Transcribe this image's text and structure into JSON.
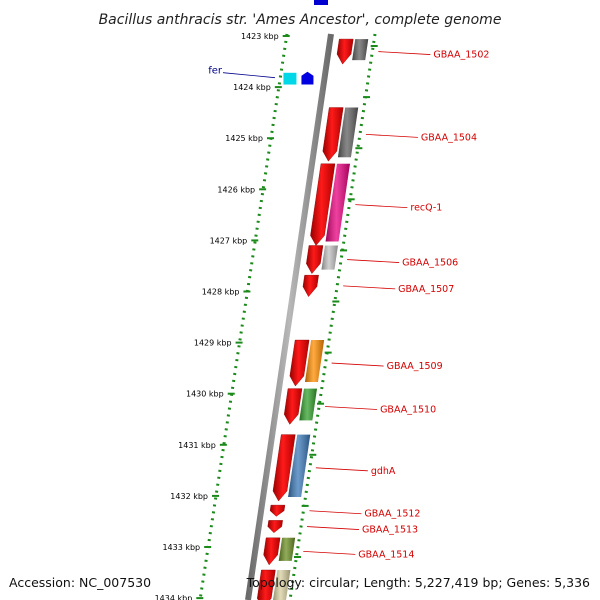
{
  "title": "Bacillus anthracis str. 'Ames Ancestor', complete genome",
  "accession": "Accession: NC_007530",
  "summary": "Topology: circular; Length: 5,227,419 bp; Genes: 5,336",
  "scale_ticks": [
    {
      "kbp": 1423,
      "label": "1423 kbp"
    },
    {
      "kbp": 1424,
      "label": "1424 kbp"
    },
    {
      "kbp": 1425,
      "label": "1425 kbp"
    },
    {
      "kbp": 1426,
      "label": "1426 kbp"
    },
    {
      "kbp": 1427,
      "label": "1427 kbp"
    },
    {
      "kbp": 1428,
      "label": "1428 kbp"
    },
    {
      "kbp": 1429,
      "label": "1429 kbp"
    },
    {
      "kbp": 1430,
      "label": "1430 kbp"
    },
    {
      "kbp": 1431,
      "label": "1431 kbp"
    },
    {
      "kbp": 1432,
      "label": "1432 kbp"
    },
    {
      "kbp": 1433,
      "label": "1433 kbp"
    },
    {
      "kbp": 1434,
      "label": "1434 kbp"
    }
  ],
  "genes_right": [
    {
      "label": "GBAA_1502",
      "start": 1423.06,
      "end": 1423.55,
      "cog": "#606060"
    },
    {
      "label": "GBAA_1504",
      "start": 1424.4,
      "end": 1425.45,
      "cog": "#606060"
    },
    {
      "label": "recQ-1",
      "start": 1425.5,
      "end": 1427.1,
      "cog": "#e8007f"
    },
    {
      "label": "GBAA_1506",
      "start": 1427.1,
      "end": 1427.65,
      "cog": "#c0c0c0"
    },
    {
      "label": "GBAA_1507",
      "start": 1427.68,
      "end": 1428.1,
      "cog": ""
    },
    {
      "label": "GBAA_1509",
      "start": 1428.95,
      "end": 1429.85,
      "cog": "#ff8c00"
    },
    {
      "label": "GBAA_1510",
      "start": 1429.9,
      "end": 1430.6,
      "cog": "#33a02c"
    },
    {
      "label": "gdhA",
      "start": 1430.8,
      "end": 1432.1,
      "cog": "#3a78b8"
    },
    {
      "label": "GBAA_1512",
      "start": 1432.18,
      "end": 1432.4,
      "cog": ""
    },
    {
      "label": "GBAA_1513",
      "start": 1432.48,
      "end": 1432.72,
      "cog": ""
    },
    {
      "label": "GBAA_1514",
      "start": 1432.82,
      "end": 1433.35,
      "cog": "#6b8e23"
    },
    {
      "label": "",
      "start": 1433.45,
      "end": 1434.2,
      "cog": "#d8cfa0"
    }
  ],
  "genes_left": [
    {
      "label": "fer",
      "start": 1423.72,
      "end": 1423.95,
      "cog": "#00d8e8",
      "arrow": "#0000e0"
    }
  ]
}
